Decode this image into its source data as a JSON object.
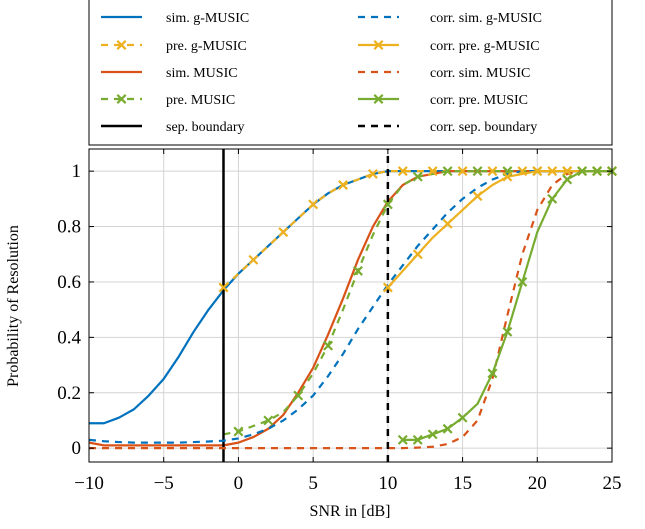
{
  "chart_data": {
    "type": "line",
    "xlabel": "SNR in [dB]",
    "ylabel": "Probability of Resolution",
    "xlim": [
      -10,
      25
    ],
    "ylim": [
      -0.05,
      1.08
    ],
    "xticks": [
      -10,
      -5,
      0,
      5,
      10,
      15,
      20,
      25
    ],
    "xtick_labels": [
      "−10",
      "−5",
      "0",
      "5",
      "10",
      "15",
      "20",
      "25"
    ],
    "yticks": [
      0,
      0.2,
      0.4,
      0.6,
      0.8,
      1
    ],
    "ytick_labels": [
      "0",
      "0.2",
      "0.4",
      "0.6",
      "0.8",
      "1"
    ],
    "grid": true,
    "legend_position": "top",
    "series": [
      {
        "name": "sim. g-MUSIC",
        "color": "#0072BD",
        "style": "solid",
        "marker": "none",
        "x": [
          -10,
          -9,
          -8,
          -7,
          -6,
          -5,
          -4,
          -3,
          -2,
          -1,
          0,
          1,
          2,
          3,
          4,
          5,
          6,
          7,
          8,
          9,
          10,
          11,
          12,
          13,
          14,
          15,
          16,
          17,
          18,
          19,
          20,
          21,
          22,
          23,
          24,
          25
        ],
        "y": [
          0.09,
          0.09,
          0.11,
          0.14,
          0.19,
          0.25,
          0.33,
          0.42,
          0.5,
          0.57,
          0.63,
          0.68,
          0.73,
          0.78,
          0.83,
          0.88,
          0.92,
          0.95,
          0.97,
          0.99,
          1,
          1,
          1,
          1,
          1,
          1,
          1,
          1,
          1,
          1,
          1,
          1,
          1,
          1,
          1,
          1
        ]
      },
      {
        "name": "pre. g-MUSIC",
        "color": "#EDB120",
        "style": "dashed",
        "marker": "x",
        "x": [
          -1,
          0,
          1,
          2,
          3,
          4,
          5,
          6,
          7,
          8,
          9,
          10,
          11,
          12,
          13,
          14,
          15,
          16,
          17,
          18,
          19,
          20,
          21,
          22,
          23,
          24,
          25
        ],
        "y": [
          0.58,
          0.63,
          0.68,
          0.73,
          0.78,
          0.83,
          0.88,
          0.92,
          0.95,
          0.97,
          0.99,
          1,
          1,
          1,
          1,
          1,
          1,
          1,
          1,
          1,
          1,
          1,
          1,
          1,
          1,
          1,
          1
        ],
        "marker_x": [
          -1,
          1,
          3,
          5,
          7,
          9,
          11,
          13,
          15,
          17,
          19,
          21,
          23,
          25
        ]
      },
      {
        "name": "sim. MUSIC",
        "color": "#D95319",
        "style": "solid",
        "marker": "none",
        "x": [
          -10,
          -9,
          -8,
          -7,
          -6,
          -5,
          -4,
          -3,
          -2,
          -1,
          0,
          1,
          2,
          3,
          4,
          5,
          6,
          7,
          8,
          9,
          10,
          11,
          12,
          13,
          14,
          15,
          16,
          17,
          18,
          19,
          20,
          21,
          22,
          23,
          24,
          25
        ],
        "y": [
          0.02,
          0.01,
          0.01,
          0.01,
          0.01,
          0.01,
          0.01,
          0.01,
          0.01,
          0.01,
          0.02,
          0.04,
          0.07,
          0.12,
          0.2,
          0.29,
          0.41,
          0.54,
          0.68,
          0.8,
          0.89,
          0.95,
          0.98,
          0.99,
          1,
          1,
          1,
          1,
          1,
          1,
          1,
          1,
          1,
          1,
          1,
          1
        ]
      },
      {
        "name": "pre. MUSIC",
        "color": "#77AC30",
        "style": "dashed",
        "marker": "x",
        "x": [
          -1,
          0,
          1,
          2,
          3,
          4,
          5,
          6,
          7,
          8,
          9,
          10,
          11,
          12,
          13,
          14,
          15,
          16,
          17,
          18,
          19,
          20,
          21,
          22,
          23,
          24,
          25
        ],
        "y": [
          0.05,
          0.06,
          0.08,
          0.1,
          0.13,
          0.19,
          0.27,
          0.37,
          0.5,
          0.64,
          0.77,
          0.88,
          0.95,
          0.98,
          0.99,
          1,
          1,
          1,
          1,
          1,
          1,
          1,
          1,
          1,
          1,
          1,
          1
        ],
        "marker_x": [
          0,
          2,
          4,
          6,
          8,
          10,
          12,
          14,
          16,
          18,
          20,
          22,
          24
        ]
      },
      {
        "name": "sep. boundary",
        "color": "#000000",
        "style": "solid",
        "marker": "none",
        "x": [
          -1,
          -1
        ],
        "y": [
          -0.05,
          1.08
        ]
      },
      {
        "name": "corr. sim. g-MUSIC",
        "color": "#0072BD",
        "style": "dashed",
        "marker": "none",
        "x": [
          -10,
          -9,
          -8,
          -7,
          -6,
          -5,
          -4,
          -3,
          -2,
          -1,
          0,
          1,
          2,
          3,
          4,
          5,
          6,
          7,
          8,
          9,
          10,
          11,
          12,
          13,
          14,
          15,
          16,
          17,
          18,
          19,
          20,
          21,
          22,
          23,
          24,
          25
        ],
        "y": [
          0.03,
          0.025,
          0.022,
          0.02,
          0.02,
          0.02,
          0.02,
          0.022,
          0.024,
          0.027,
          0.035,
          0.05,
          0.07,
          0.1,
          0.14,
          0.19,
          0.26,
          0.34,
          0.43,
          0.51,
          0.59,
          0.66,
          0.73,
          0.79,
          0.85,
          0.9,
          0.94,
          0.97,
          0.99,
          1,
          1,
          1,
          1,
          1,
          1,
          1
        ]
      },
      {
        "name": "corr. pre. g-MUSIC",
        "color": "#EDB120",
        "style": "solid",
        "marker": "x",
        "x": [
          10,
          11,
          12,
          13,
          14,
          15,
          16,
          17,
          18,
          19,
          20,
          21,
          22,
          23,
          24,
          25
        ],
        "y": [
          0.58,
          0.64,
          0.7,
          0.76,
          0.81,
          0.86,
          0.91,
          0.95,
          0.98,
          0.99,
          1,
          1,
          1,
          1,
          1,
          1
        ],
        "marker_x": [
          10,
          12,
          14,
          16,
          18,
          20,
          22,
          24,
          25
        ]
      },
      {
        "name": "corr. sim. MUSIC",
        "color": "#D95319",
        "style": "dashed",
        "marker": "none",
        "x": [
          -10,
          -9,
          -8,
          -7,
          -6,
          -5,
          -4,
          -3,
          -2,
          -1,
          0,
          1,
          2,
          3,
          4,
          5,
          6,
          7,
          8,
          9,
          10,
          11,
          12,
          13,
          14,
          15,
          16,
          17,
          18,
          19,
          20,
          21,
          22,
          23,
          24,
          25
        ],
        "y": [
          0,
          0,
          0,
          0,
          0,
          0,
          0,
          0,
          0,
          0,
          0,
          0,
          0,
          0,
          0,
          0,
          0,
          0,
          0,
          0,
          0,
          0,
          0.002,
          0.005,
          0.015,
          0.04,
          0.1,
          0.25,
          0.48,
          0.7,
          0.86,
          0.95,
          0.99,
          1,
          1,
          1
        ]
      },
      {
        "name": "corr. pre. MUSIC",
        "color": "#77AC30",
        "style": "solid",
        "marker": "x",
        "x": [
          11,
          12,
          13,
          14,
          15,
          16,
          17,
          18,
          19,
          20,
          21,
          22,
          23,
          24,
          25
        ],
        "y": [
          0.03,
          0.03,
          0.05,
          0.07,
          0.11,
          0.16,
          0.27,
          0.42,
          0.6,
          0.78,
          0.9,
          0.97,
          1,
          1,
          1
        ],
        "marker_x": [
          11,
          12,
          13,
          14,
          15,
          17,
          18,
          19,
          21,
          22,
          23,
          24,
          25
        ]
      },
      {
        "name": "corr. sep. boundary",
        "color": "#000000",
        "style": "dashed",
        "marker": "none",
        "x": [
          10,
          10
        ],
        "y": [
          -0.05,
          1.08
        ]
      }
    ]
  }
}
